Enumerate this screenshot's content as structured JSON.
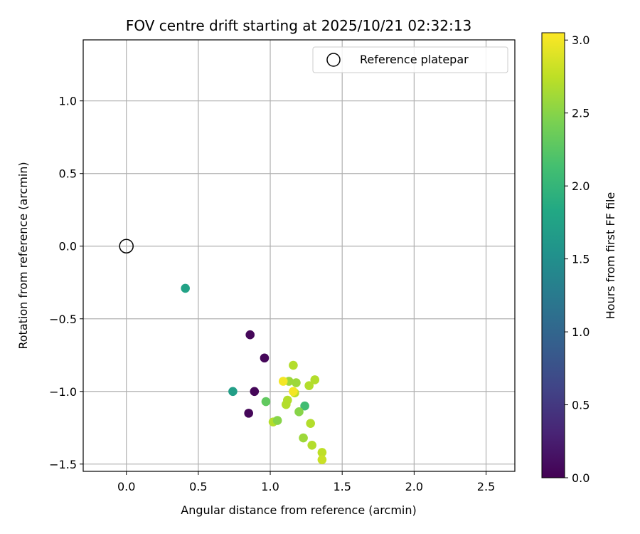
{
  "chart_data": {
    "type": "scatter",
    "title": "FOV centre drift starting at 2025/10/21 02:32:13",
    "xlabel": "Angular distance from reference (arcmin)",
    "ylabel": "Rotation from reference (arcmin)",
    "xlim": [
      -0.3,
      2.7
    ],
    "ylim": [
      -1.55,
      1.42
    ],
    "xticks": [
      0.0,
      0.5,
      1.0,
      1.5,
      2.0,
      2.5
    ],
    "xtick_labels": [
      "0.0",
      "0.5",
      "1.0",
      "1.5",
      "2.0",
      "2.5"
    ],
    "yticks": [
      -1.5,
      -1.0,
      -0.5,
      0.0,
      0.5,
      1.0
    ],
    "ytick_labels": [
      "−1.5",
      "−1.0",
      "−0.5",
      "0.0",
      "0.5",
      "1.0"
    ],
    "grid": true,
    "legend": {
      "position": "top-right",
      "entries": [
        {
          "label": "Reference platepar",
          "marker": "open-circle"
        }
      ]
    },
    "reference_point": {
      "x": 0.0,
      "y": 0.0
    },
    "colorbar": {
      "label": "Hours from first FF file",
      "colormap": "viridis",
      "range": [
        0.0,
        3.05
      ],
      "ticks": [
        0.0,
        0.5,
        1.0,
        1.5,
        2.0,
        2.5,
        3.0
      ],
      "tick_labels": [
        "0.0",
        "0.5",
        "1.0",
        "1.5",
        "2.0",
        "2.5",
        "3.0"
      ]
    },
    "points": [
      {
        "x": 0.41,
        "y": -0.29,
        "t": 1.75
      },
      {
        "x": 0.86,
        "y": -0.61,
        "t": 0.05
      },
      {
        "x": 0.96,
        "y": -0.77,
        "t": 0.05
      },
      {
        "x": 0.89,
        "y": -1.0,
        "t": 0.05
      },
      {
        "x": 0.85,
        "y": -1.15,
        "t": 0.05
      },
      {
        "x": 0.74,
        "y": -1.0,
        "t": 1.7
      },
      {
        "x": 0.97,
        "y": -1.07,
        "t": 2.3
      },
      {
        "x": 1.16,
        "y": -0.82,
        "t": 2.7
      },
      {
        "x": 1.13,
        "y": -0.93,
        "t": 2.6
      },
      {
        "x": 1.18,
        "y": -0.94,
        "t": 2.6
      },
      {
        "x": 1.09,
        "y": -0.93,
        "t": 3.0
      },
      {
        "x": 1.17,
        "y": -1.01,
        "t": 2.75
      },
      {
        "x": 1.16,
        "y": -1.0,
        "t": 3.0
      },
      {
        "x": 1.31,
        "y": -0.92,
        "t": 2.7
      },
      {
        "x": 1.27,
        "y": -0.96,
        "t": 2.7
      },
      {
        "x": 1.12,
        "y": -1.06,
        "t": 2.7
      },
      {
        "x": 1.11,
        "y": -1.09,
        "t": 2.7
      },
      {
        "x": 1.24,
        "y": -1.1,
        "t": 2.1
      },
      {
        "x": 1.2,
        "y": -1.14,
        "t": 2.5
      },
      {
        "x": 1.02,
        "y": -1.21,
        "t": 2.7
      },
      {
        "x": 1.05,
        "y": -1.2,
        "t": 2.5
      },
      {
        "x": 1.28,
        "y": -1.22,
        "t": 2.7
      },
      {
        "x": 1.23,
        "y": -1.32,
        "t": 2.6
      },
      {
        "x": 1.29,
        "y": -1.37,
        "t": 2.7
      },
      {
        "x": 1.36,
        "y": -1.42,
        "t": 2.75
      },
      {
        "x": 1.36,
        "y": -1.47,
        "t": 2.8
      }
    ]
  }
}
